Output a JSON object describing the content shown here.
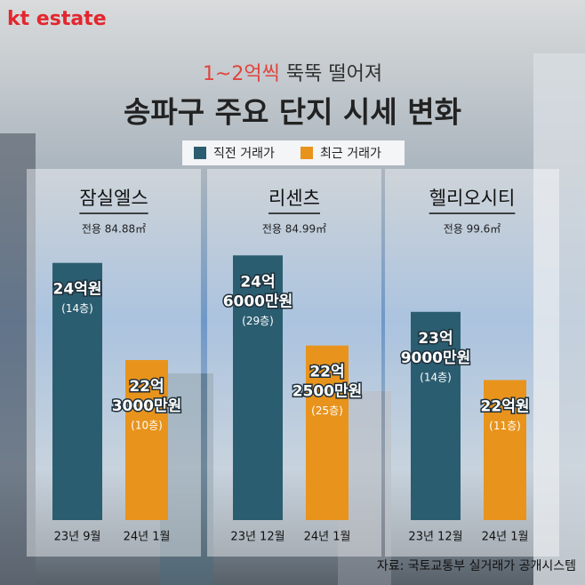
{
  "brand": "kt estate",
  "subtitle": {
    "highlight": "1~2억씩",
    "rest": "뚝뚝 떨어져"
  },
  "title": "송파구 주요 단지 시세 변화",
  "legend": [
    {
      "name": "직전 거래가",
      "color": "#2b5d70"
    },
    {
      "name": "최근 거래가",
      "color": "#e8931c"
    }
  ],
  "chart_data": [
    {
      "type": "bar",
      "title": "잠실엘스",
      "subtitle": "전용 84.88㎡",
      "categories": [
        "23년 9월",
        "24년 1월"
      ],
      "values": [
        24,
        22.3
      ],
      "value_labels": [
        [
          "24억원"
        ],
        [
          "22억",
          "3000만원"
        ]
      ],
      "floor_labels": [
        "(14층)",
        "(10층)"
      ],
      "ylim": [
        19.5,
        24.4
      ]
    },
    {
      "type": "bar",
      "title": "리센츠",
      "subtitle": "전용 84.99㎡",
      "categories": [
        "23년 12월",
        "24년 1월"
      ],
      "values": [
        24.6,
        22.25
      ],
      "value_labels": [
        [
          "24억",
          "6000만원"
        ],
        [
          "22억",
          "2500만원"
        ]
      ],
      "floor_labels": [
        "(29층)",
        "(25층)"
      ],
      "ylim": [
        17.7,
        25.0
      ]
    },
    {
      "type": "bar",
      "title": "헬리오시티",
      "subtitle": "전용 99.6㎡",
      "categories": [
        "23년 12월",
        "24년 1월"
      ],
      "values": [
        23.9,
        22
      ],
      "value_labels": [
        [
          "23억",
          "9000만원"
        ],
        [
          "22억원"
        ]
      ],
      "floor_labels": [
        "(14층)",
        "(11층)"
      ],
      "ylim": [
        18.1,
        25.9
      ]
    }
  ],
  "source": "자료: 국토교통부 실거래가 공개시스템"
}
